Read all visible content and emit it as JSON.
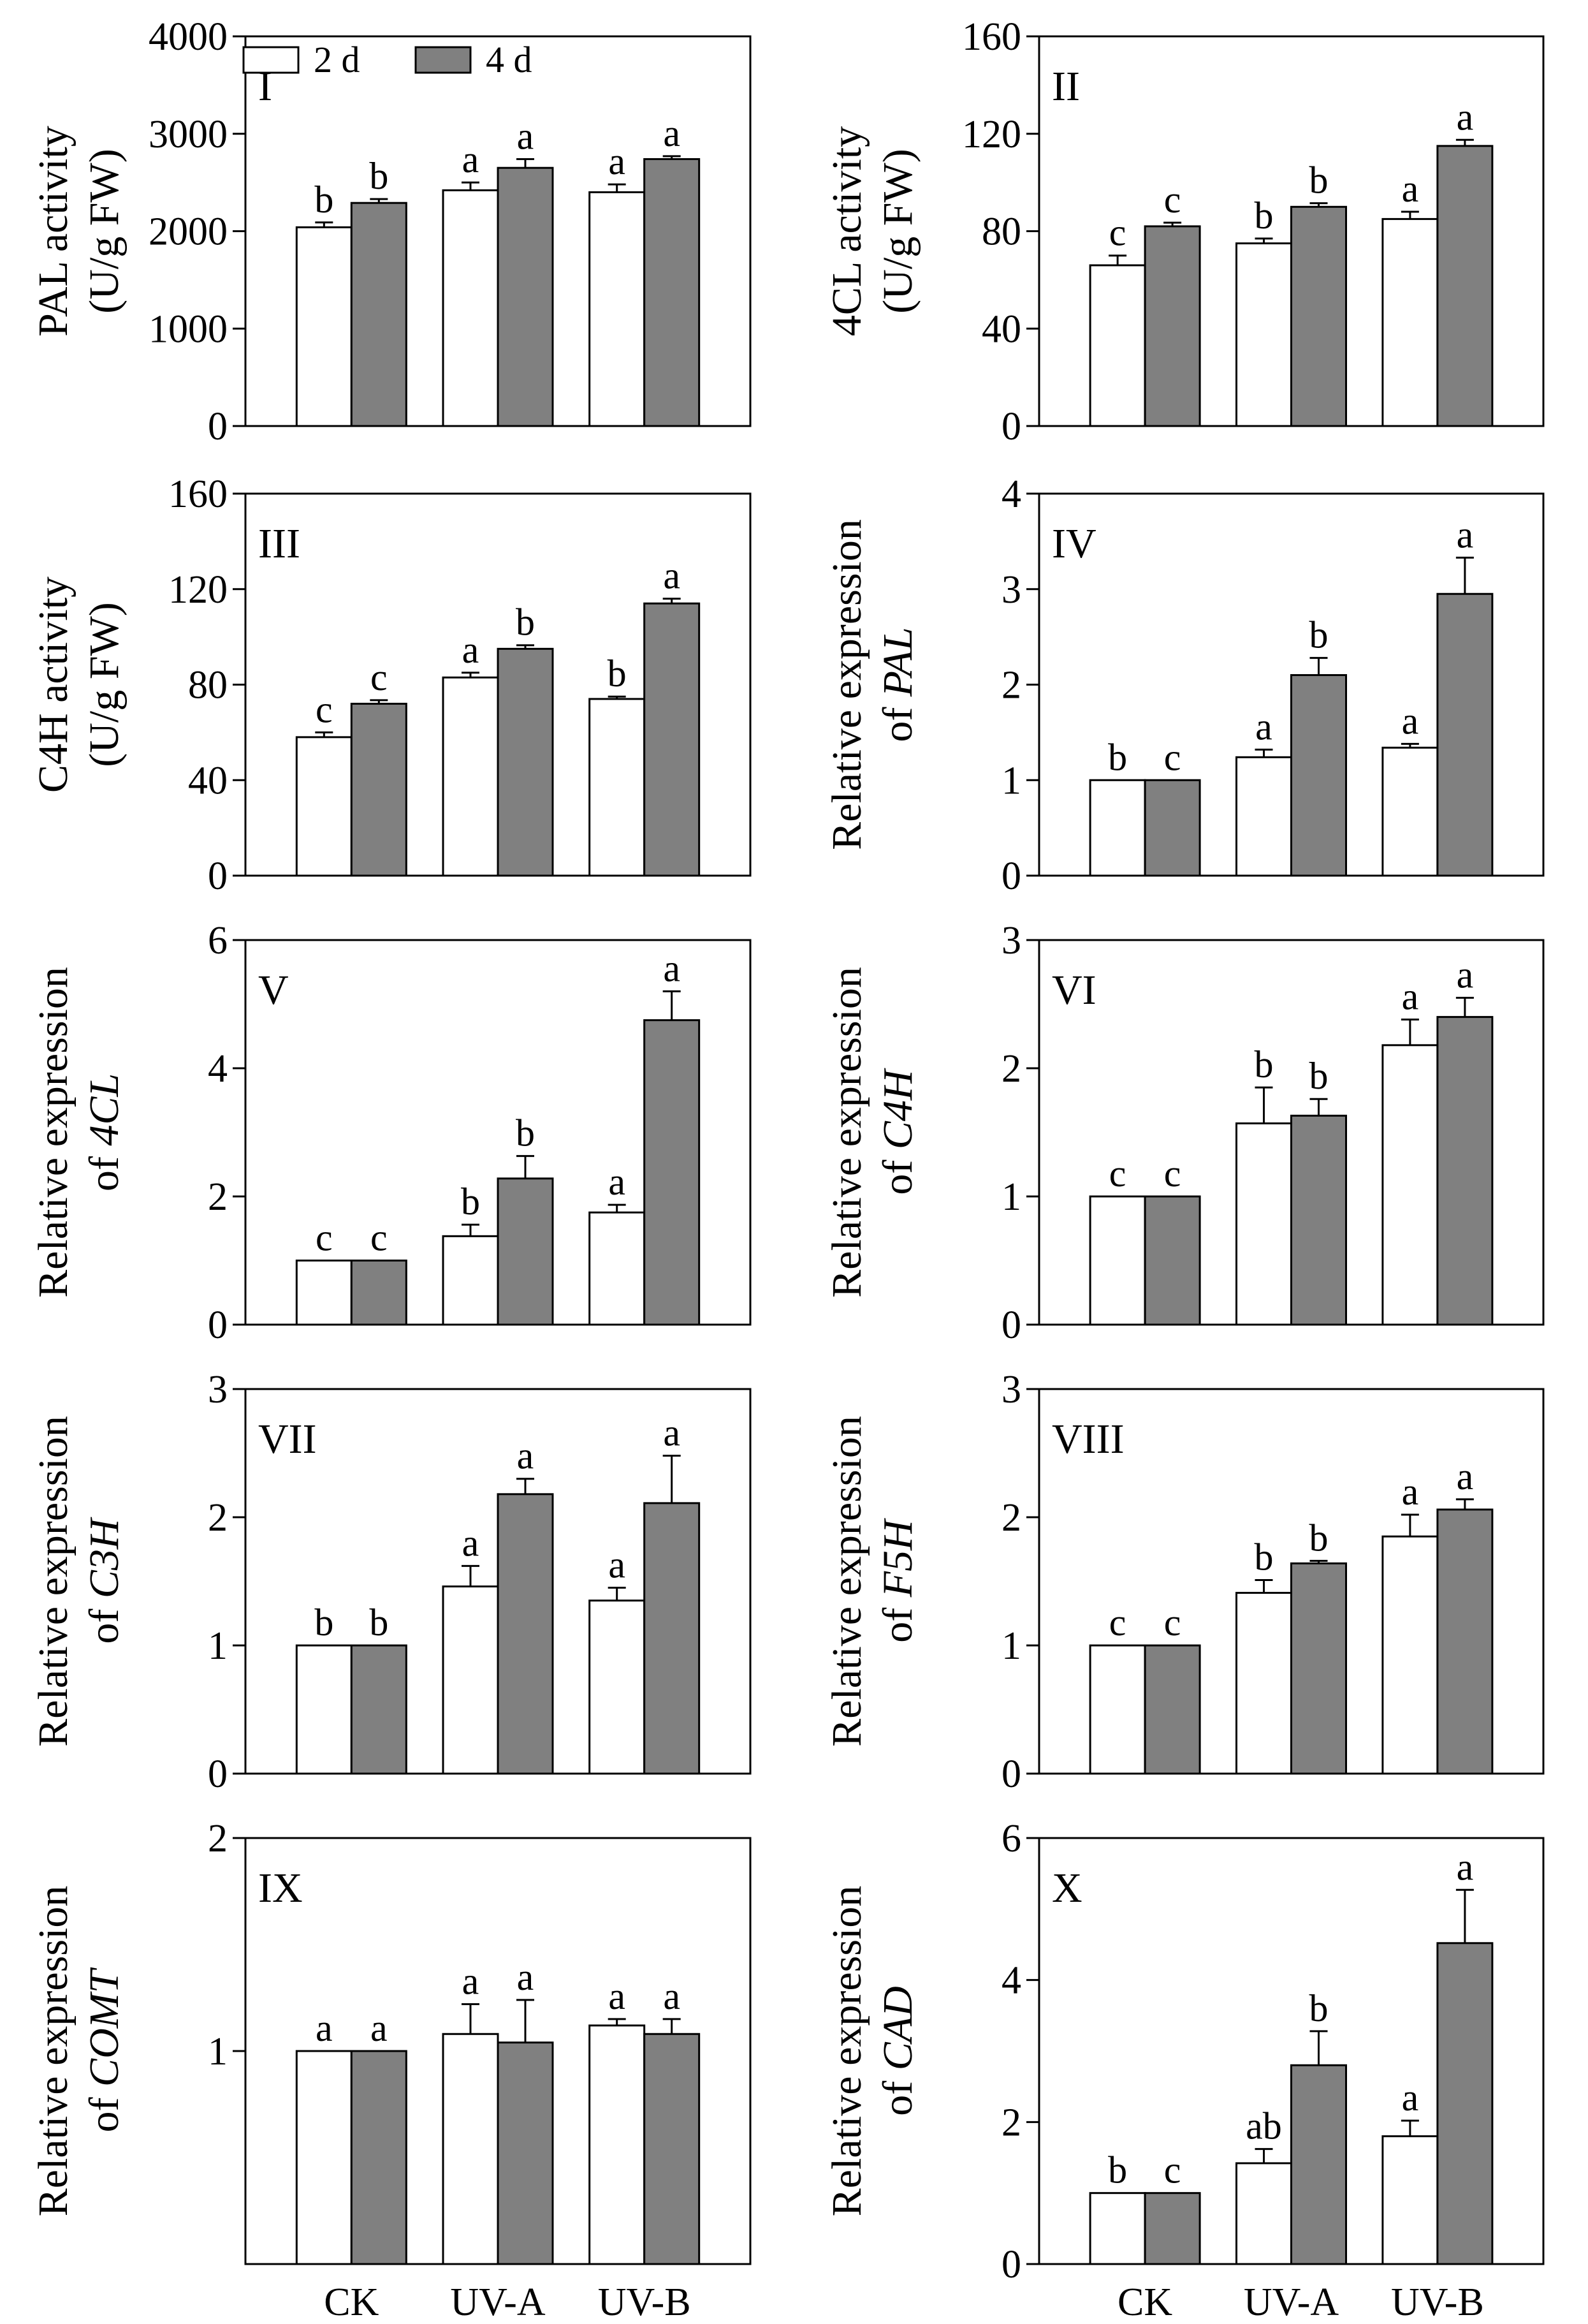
{
  "categories": [
    "CK",
    "UV-A",
    "UV-B"
  ],
  "legend": {
    "series": [
      {
        "name": "2 d",
        "color": "#ffffff"
      },
      {
        "name": "4 d",
        "color": "#808080"
      }
    ]
  },
  "chart_data": [
    {
      "type": "bar",
      "panel": "I",
      "ylabel": [
        "PAL activity",
        "(U/g FW)"
      ],
      "ylabel_italic": "",
      "ylim": [
        0,
        4000
      ],
      "yticks": [
        0,
        1000,
        2000,
        3000,
        4000
      ],
      "categories": [
        "CK",
        "UV-A",
        "UV-B"
      ],
      "series": [
        {
          "name": "2 d",
          "values": [
            2040,
            2420,
            2400
          ],
          "errors": [
            50,
            80,
            80
          ],
          "letters": [
            "b",
            "a",
            "a"
          ]
        },
        {
          "name": "4 d",
          "values": [
            2290,
            2650,
            2740
          ],
          "errors": [
            40,
            90,
            30
          ],
          "letters": [
            "b",
            "a",
            "a"
          ]
        }
      ]
    },
    {
      "type": "bar",
      "panel": "II",
      "ylabel": [
        "4CL activity",
        "(U/g FW)"
      ],
      "ylabel_italic": "",
      "ylim": [
        0,
        160
      ],
      "yticks": [
        0,
        40,
        80,
        120,
        160
      ],
      "categories": [
        "CK",
        "UV-A",
        "UV-B"
      ],
      "series": [
        {
          "name": "2 d",
          "values": [
            66,
            75,
            85
          ],
          "errors": [
            4,
            2,
            3
          ],
          "letters": [
            "c",
            "b",
            "a"
          ]
        },
        {
          "name": "4 d",
          "values": [
            82,
            90,
            115
          ],
          "errors": [
            1.5,
            1.5,
            2.5
          ],
          "letters": [
            "c",
            "b",
            "a"
          ]
        }
      ]
    },
    {
      "type": "bar",
      "panel": "III",
      "ylabel": [
        "C4H activity",
        "(U/g FW)"
      ],
      "ylabel_italic": "",
      "ylim": [
        0,
        160
      ],
      "yticks": [
        0,
        40,
        80,
        120,
        160
      ],
      "categories": [
        "CK",
        "UV-A",
        "UV-B"
      ],
      "series": [
        {
          "name": "2 d",
          "values": [
            58,
            83,
            74
          ],
          "errors": [
            2,
            2,
            1
          ],
          "letters": [
            "c",
            "a",
            "b"
          ]
        },
        {
          "name": "4 d",
          "values": [
            72,
            95,
            114
          ],
          "errors": [
            1.5,
            1.5,
            2
          ],
          "letters": [
            "c",
            "b",
            "a"
          ]
        }
      ]
    },
    {
      "type": "bar",
      "panel": "IV",
      "ylabel": [
        "Relative expression",
        "of "
      ],
      "ylabel_italic": "PAL",
      "ylim": [
        0,
        4
      ],
      "yticks": [
        0,
        1,
        2,
        3,
        4
      ],
      "categories": [
        "CK",
        "UV-A",
        "UV-B"
      ],
      "series": [
        {
          "name": "2 d",
          "values": [
            1.0,
            1.24,
            1.34
          ],
          "errors": [
            0,
            0.08,
            0.04
          ],
          "letters": [
            "b",
            "a",
            "a"
          ]
        },
        {
          "name": "4 d",
          "values": [
            1.0,
            2.1,
            2.95
          ],
          "errors": [
            0,
            0.18,
            0.38
          ],
          "letters": [
            "c",
            "b",
            "a"
          ]
        }
      ]
    },
    {
      "type": "bar",
      "panel": "V",
      "ylabel": [
        "Relative expression",
        "of "
      ],
      "ylabel_italic": "4CL",
      "ylim": [
        0,
        6
      ],
      "yticks": [
        0,
        2,
        4,
        6
      ],
      "categories": [
        "CK",
        "UV-A",
        "UV-B"
      ],
      "series": [
        {
          "name": "2 d",
          "values": [
            1.0,
            1.38,
            1.75
          ],
          "errors": [
            0,
            0.18,
            0.12
          ],
          "letters": [
            "c",
            "b",
            "a"
          ]
        },
        {
          "name": "4 d",
          "values": [
            1.0,
            2.28,
            4.75
          ],
          "errors": [
            0,
            0.35,
            0.45
          ],
          "letters": [
            "c",
            "b",
            "a"
          ]
        }
      ]
    },
    {
      "type": "bar",
      "panel": "VI",
      "ylabel": [
        "Relative expression",
        "of "
      ],
      "ylabel_italic": "C4H",
      "ylim": [
        0,
        3
      ],
      "yticks": [
        0,
        1,
        2,
        3
      ],
      "categories": [
        "CK",
        "UV-A",
        "UV-B"
      ],
      "series": [
        {
          "name": "2 d",
          "values": [
            1.0,
            1.57,
            2.18
          ],
          "errors": [
            0,
            0.28,
            0.2
          ],
          "letters": [
            "c",
            "b",
            "a"
          ]
        },
        {
          "name": "4 d",
          "values": [
            1.0,
            1.63,
            2.4
          ],
          "errors": [
            0,
            0.13,
            0.15
          ],
          "letters": [
            "c",
            "b",
            "a"
          ]
        }
      ]
    },
    {
      "type": "bar",
      "panel": "VII",
      "ylabel": [
        "Relative expression",
        "of "
      ],
      "ylabel_italic": "C3H",
      "ylim": [
        0,
        3
      ],
      "yticks": [
        0,
        1,
        2,
        3
      ],
      "categories": [
        "CK",
        "UV-A",
        "UV-B"
      ],
      "series": [
        {
          "name": "2 d",
          "values": [
            1.0,
            1.46,
            1.35
          ],
          "errors": [
            0,
            0.16,
            0.1
          ],
          "letters": [
            "b",
            "a",
            "a"
          ]
        },
        {
          "name": "4 d",
          "values": [
            1.0,
            2.18,
            2.11
          ],
          "errors": [
            0,
            0.12,
            0.37
          ],
          "letters": [
            "b",
            "a",
            "a"
          ]
        }
      ]
    },
    {
      "type": "bar",
      "panel": "VIII",
      "ylabel": [
        "Relative expression",
        "of "
      ],
      "ylabel_italic": "F5H",
      "ylim": [
        0,
        3
      ],
      "yticks": [
        0,
        1,
        2,
        3
      ],
      "categories": [
        "CK",
        "UV-A",
        "UV-B"
      ],
      "series": [
        {
          "name": "2 d",
          "values": [
            1.0,
            1.41,
            1.85
          ],
          "errors": [
            0,
            0.1,
            0.17
          ],
          "letters": [
            "c",
            "b",
            "a"
          ]
        },
        {
          "name": "4 d",
          "values": [
            1.0,
            1.64,
            2.06
          ],
          "errors": [
            0,
            0.02,
            0.08
          ],
          "letters": [
            "c",
            "b",
            "a"
          ]
        }
      ]
    },
    {
      "type": "bar",
      "panel": "IX",
      "ylabel": [
        "Relative expression",
        "of "
      ],
      "ylabel_italic": "COMT",
      "ylim": [
        0,
        2
      ],
      "yticks": [
        1,
        2
      ],
      "categories": [
        "CK",
        "UV-A",
        "UV-B"
      ],
      "series": [
        {
          "name": "2 d",
          "values": [
            1.0,
            1.08,
            1.12
          ],
          "errors": [
            0,
            0.14,
            0.03
          ],
          "letters": [
            "a",
            "a",
            "a"
          ]
        },
        {
          "name": "4 d",
          "values": [
            1.0,
            1.04,
            1.08
          ],
          "errors": [
            0,
            0.2,
            0.07
          ],
          "letters": [
            "a",
            "a",
            "a"
          ]
        }
      ]
    },
    {
      "type": "bar",
      "panel": "X",
      "ylabel": [
        "Relative expression",
        "of "
      ],
      "ylabel_italic": "CAD",
      "ylim": [
        0,
        6
      ],
      "yticks": [
        0,
        2,
        4,
        6
      ],
      "categories": [
        "CK",
        "UV-A",
        "UV-B"
      ],
      "series": [
        {
          "name": "2 d",
          "values": [
            1.0,
            1.42,
            1.8
          ],
          "errors": [
            0,
            0.2,
            0.22
          ],
          "letters": [
            "b",
            "ab",
            "a"
          ]
        },
        {
          "name": "4 d",
          "values": [
            1.0,
            2.8,
            4.52
          ],
          "errors": [
            0,
            0.48,
            0.75
          ],
          "letters": [
            "c",
            "b",
            "a"
          ]
        }
      ]
    }
  ]
}
